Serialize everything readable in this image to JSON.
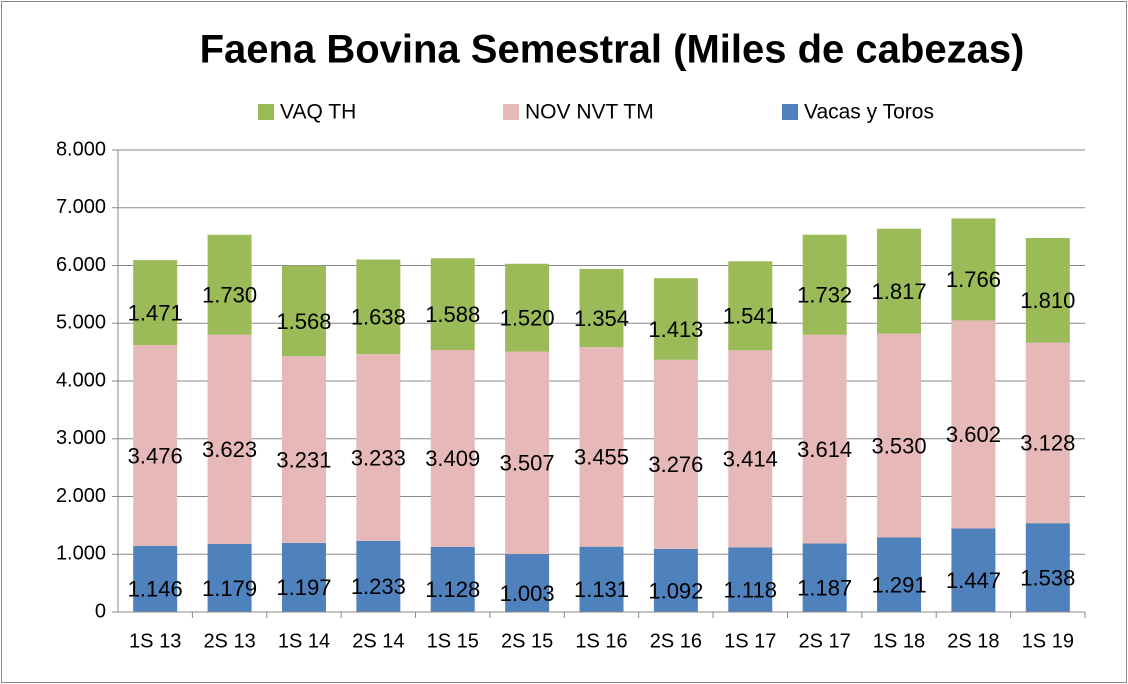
{
  "chart_data": {
    "type": "stacked_bar",
    "title": "Faena Bovina Semestral (Miles de cabezas)",
    "categories": [
      "1S 13",
      "2S 13",
      "1S 14",
      "2S 14",
      "1S 15",
      "2S 15",
      "1S 16",
      "2S 16",
      "1S 17",
      "2S 17",
      "1S 18",
      "2S 18",
      "1S 19"
    ],
    "series": [
      {
        "name": "Vacas y Toros",
        "color": "#4f81bd",
        "values": [
          1146,
          1179,
          1197,
          1233,
          1128,
          1003,
          1131,
          1092,
          1118,
          1187,
          1291,
          1447,
          1538
        ],
        "value_labels": [
          "1.146",
          "1.179",
          "1.197",
          "1.233",
          "1.128",
          "1.003",
          "1.131",
          "1.092",
          "1.118",
          "1.187",
          "1.291",
          "1.447",
          "1.538"
        ]
      },
      {
        "name": "NOV NVT TM",
        "color": "#e6b9b8",
        "values": [
          3476,
          3623,
          3231,
          3233,
          3409,
          3507,
          3455,
          3276,
          3414,
          3614,
          3530,
          3602,
          3128
        ],
        "value_labels": [
          "3.476",
          "3.623",
          "3.231",
          "3.233",
          "3.409",
          "3.507",
          "3.455",
          "3.276",
          "3.414",
          "3.614",
          "3.530",
          "3.602",
          "3.128"
        ]
      },
      {
        "name": "VAQ TH",
        "color": "#9bbb59",
        "values": [
          1471,
          1730,
          1568,
          1638,
          1588,
          1520,
          1354,
          1413,
          1541,
          1732,
          1817,
          1766,
          1810
        ],
        "value_labels": [
          "1.471",
          "1.730",
          "1.568",
          "1.638",
          "1.588",
          "1.520",
          "1.354",
          "1.413",
          "1.541",
          "1.732",
          "1.817",
          "1.766",
          "1.810"
        ]
      }
    ],
    "ylim": [
      0,
      8000
    ],
    "yticks": [
      0,
      {
        "value": 1000,
        "label": "1.000"
      },
      {
        "value": 2000,
        "label": "2.000"
      },
      {
        "value": 3000,
        "label": "3.000"
      },
      {
        "value": 4000,
        "label": "4.000"
      },
      {
        "value": 5000,
        "label": "5.000"
      },
      {
        "value": 6000,
        "label": "6.000"
      },
      {
        "value": 7000,
        "label": "7.000"
      },
      {
        "value": 8000,
        "label": "8.000"
      }
    ],
    "grid": true,
    "legend": "top"
  }
}
